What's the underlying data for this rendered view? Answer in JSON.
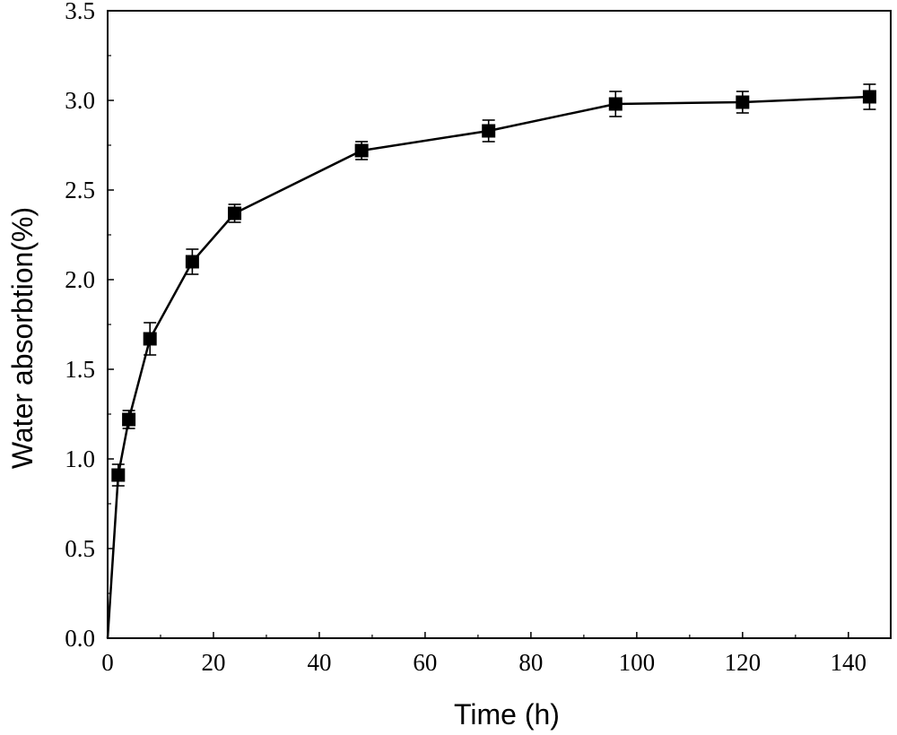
{
  "chart_data": {
    "type": "line",
    "title": "",
    "xlabel": "Time (h)",
    "ylabel": "Water absorbtion(%)",
    "xlim": [
      0,
      148
    ],
    "ylim": [
      0,
      3.5
    ],
    "xticks": [
      0,
      20,
      40,
      60,
      80,
      100,
      120,
      140
    ],
    "xtick_labels": [
      "0",
      "20",
      "40",
      "60",
      "80",
      "100",
      "120",
      "140"
    ],
    "yticks": [
      0,
      0.5,
      1.0,
      1.5,
      2.0,
      2.5,
      3.0,
      3.5
    ],
    "ytick_labels": [
      "0.0",
      "0.5",
      "1.0",
      "1.5",
      "2.0",
      "2.5",
      "3.0",
      "3.5"
    ],
    "grid": false,
    "series": [
      {
        "name": "Water absorption",
        "marker": "square",
        "color": "#000000",
        "x": [
          0,
          2,
          4,
          8,
          16,
          24,
          48,
          72,
          96,
          120,
          144
        ],
        "y": [
          0,
          0.91,
          1.22,
          1.67,
          2.1,
          2.37,
          2.72,
          2.83,
          2.98,
          2.99,
          3.02
        ],
        "error": [
          0,
          0.06,
          0.05,
          0.09,
          0.07,
          0.05,
          0.05,
          0.06,
          0.07,
          0.06,
          0.07
        ],
        "show_marker": [
          false,
          true,
          true,
          true,
          true,
          true,
          true,
          true,
          true,
          true,
          true
        ]
      }
    ]
  }
}
